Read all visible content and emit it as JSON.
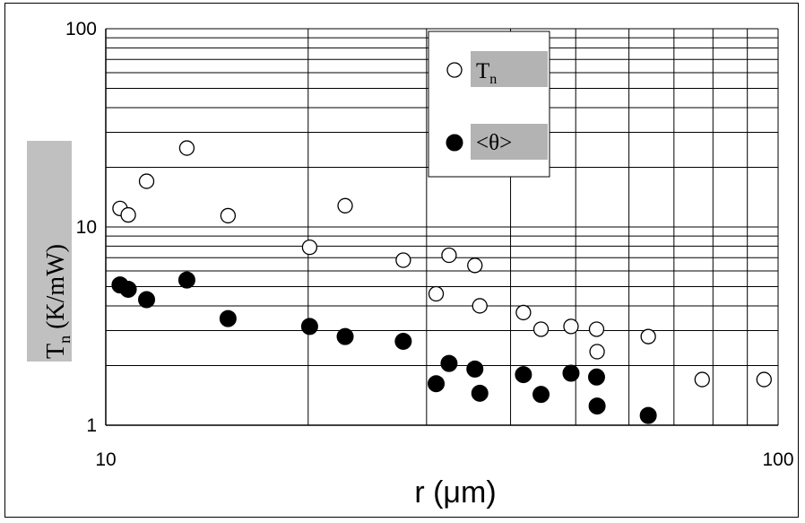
{
  "chart_data": {
    "type": "scatter",
    "xscale": "log",
    "yscale": "log",
    "xlim": [
      10,
      100
    ],
    "ylim": [
      1,
      100
    ],
    "grid": true,
    "legend_position": "top-center",
    "xlabel": "r (μm)",
    "ylabel": {
      "main": "T",
      "sub": "n",
      "rest": " (K/mW)"
    },
    "x_ticks": [
      {
        "value": 10,
        "label": "10"
      },
      {
        "value": 100,
        "label": "100"
      }
    ],
    "y_ticks": [
      {
        "value": 1,
        "label": "1"
      },
      {
        "value": 10,
        "label": "10"
      },
      {
        "value": 100,
        "label": "100"
      }
    ],
    "series": [
      {
        "name": "T",
        "name_sub": "n",
        "marker": "open-circle",
        "color": "#000000",
        "points": [
          {
            "x": 10.5,
            "y": 12.4
          },
          {
            "x": 10.8,
            "y": 11.5
          },
          {
            "x": 11.5,
            "y": 17.0
          },
          {
            "x": 13.2,
            "y": 25.0
          },
          {
            "x": 15.2,
            "y": 11.4
          },
          {
            "x": 20.1,
            "y": 7.9
          },
          {
            "x": 22.7,
            "y": 12.8
          },
          {
            "x": 27.7,
            "y": 6.8
          },
          {
            "x": 31.0,
            "y": 4.6
          },
          {
            "x": 32.4,
            "y": 7.2
          },
          {
            "x": 35.4,
            "y": 6.4
          },
          {
            "x": 36.0,
            "y": 4.0
          },
          {
            "x": 41.8,
            "y": 3.7
          },
          {
            "x": 44.4,
            "y": 3.05
          },
          {
            "x": 49.2,
            "y": 3.15
          },
          {
            "x": 53.7,
            "y": 3.05
          },
          {
            "x": 53.8,
            "y": 2.35
          },
          {
            "x": 64.1,
            "y": 2.8
          },
          {
            "x": 77.1,
            "y": 1.7
          },
          {
            "x": 95.3,
            "y": 1.7
          }
        ]
      },
      {
        "name": "<θ>",
        "marker": "filled-circle",
        "color": "#000000",
        "points": [
          {
            "x": 10.5,
            "y": 5.1
          },
          {
            "x": 10.8,
            "y": 4.85
          },
          {
            "x": 11.5,
            "y": 4.3
          },
          {
            "x": 13.2,
            "y": 5.4
          },
          {
            "x": 15.2,
            "y": 3.45
          },
          {
            "x": 20.1,
            "y": 3.15
          },
          {
            "x": 22.7,
            "y": 2.8
          },
          {
            "x": 27.7,
            "y": 2.65
          },
          {
            "x": 31.0,
            "y": 1.62
          },
          {
            "x": 32.4,
            "y": 2.05
          },
          {
            "x": 35.4,
            "y": 1.92
          },
          {
            "x": 36.0,
            "y": 1.45
          },
          {
            "x": 41.8,
            "y": 1.8
          },
          {
            "x": 44.4,
            "y": 1.43
          },
          {
            "x": 49.2,
            "y": 1.83
          },
          {
            "x": 53.7,
            "y": 1.75
          },
          {
            "x": 53.8,
            "y": 1.25
          },
          {
            "x": 64.1,
            "y": 1.12
          }
        ]
      }
    ]
  }
}
